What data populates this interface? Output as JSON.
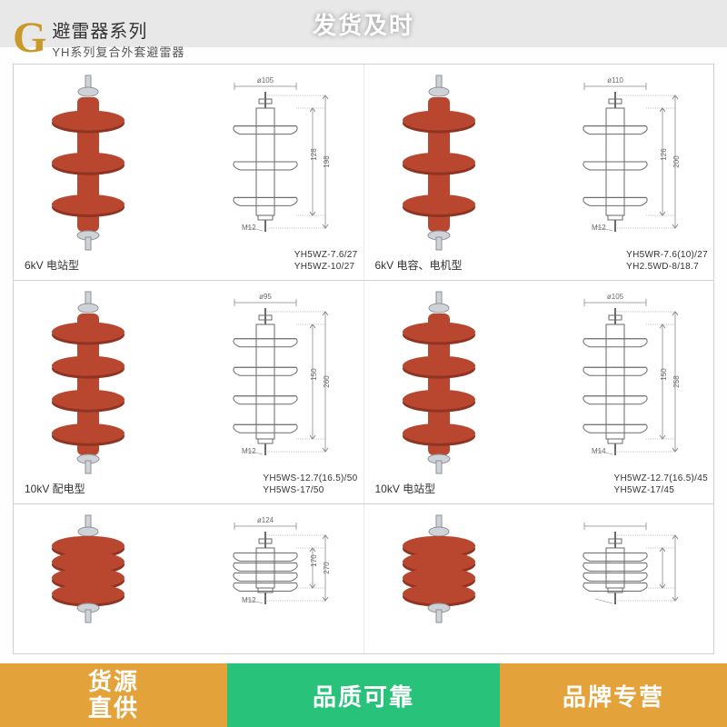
{
  "header_banner_text": "发货及时",
  "title": {
    "letter": "G",
    "line1": "避雷器系列",
    "line2": "YH系列复合外套避雷器"
  },
  "arrester_colors": {
    "body": "#b9472f",
    "body_dark": "#8f3322",
    "metal": "#cfd2d6",
    "metal_dark": "#8e9298"
  },
  "diagram_colors": {
    "stroke": "#6a6a6a",
    "thin": "#8a8a8a"
  },
  "rows": [
    {
      "cells": [
        {
          "photo_sheds": 3,
          "diag_sheds": 3,
          "diag_top_dim": "ø105",
          "diag_side_dim1": "128",
          "diag_side_dim2": "198",
          "diag_bolt": "M12",
          "cap_left": "6kV 电站型",
          "cap_right_1": "YH5WZ-7.6/27",
          "cap_right_2": "YH5WZ-10/27"
        },
        {
          "photo_sheds": 3,
          "diag_sheds": 3,
          "diag_top_dim": "ø110",
          "diag_side_dim1": "126",
          "diag_side_dim2": "200",
          "diag_bolt": "M12",
          "cap_left": "6kV 电容、电机型",
          "cap_right_1": "YH5WR-7.6(10)/27",
          "cap_right_2": "YH2.5WD-8/18.7"
        }
      ]
    },
    {
      "cells": [
        {
          "photo_sheds": 4,
          "diag_sheds": 4,
          "diag_top_dim": "ø95",
          "diag_side_dim1": "150",
          "diag_side_dim2": "260",
          "diag_bolt": "M12",
          "cap_left": "10kV 配电型",
          "cap_right_1": "YH5WS-12.7(16.5)/50",
          "cap_right_2": "YH5WS-17/50"
        },
        {
          "photo_sheds": 4,
          "diag_sheds": 4,
          "diag_top_dim": "ø105",
          "diag_side_dim1": "150",
          "diag_side_dim2": "258",
          "diag_bolt": "M14",
          "cap_left": "10kV 电站型",
          "cap_right_1": "YH5WZ-12.7(16.5)/45",
          "cap_right_2": "YH5WZ-17/45"
        }
      ]
    },
    {
      "cells": [
        {
          "photo_sheds": 4,
          "diag_sheds": 4,
          "diag_top_dim": "ø124",
          "diag_side_dim1": "170",
          "diag_side_dim2": "270",
          "diag_bolt": "M12",
          "cap_left": "",
          "cap_right_1": "",
          "cap_right_2": ""
        },
        {
          "photo_sheds": 4,
          "diag_sheds": 4,
          "diag_top_dim": "",
          "diag_side_dim1": "",
          "diag_side_dim2": "",
          "diag_bolt": "",
          "cap_left": "",
          "cap_right_1": "",
          "cap_right_2": ""
        }
      ]
    }
  ],
  "badges": {
    "left": "货源\n直供",
    "mid": "品质可靠",
    "right": "品牌专营"
  }
}
